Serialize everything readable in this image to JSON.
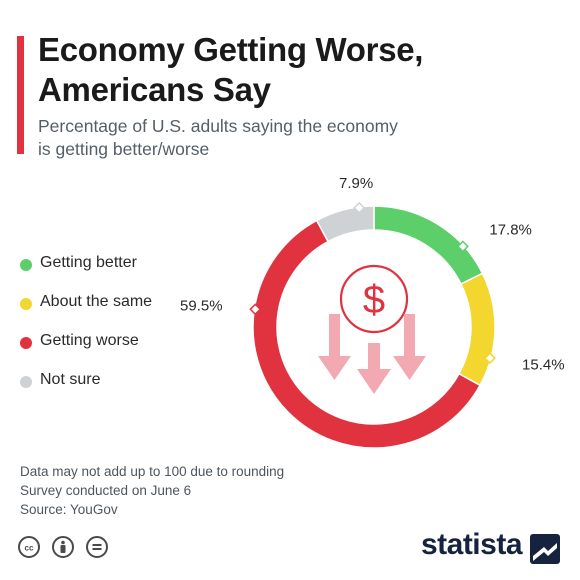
{
  "header": {
    "title": "Economy Getting Worse, Americans Say",
    "subtitle": "Percentage of U.S. adults saying the economy is getting better/worse"
  },
  "legend": [
    {
      "label": "Getting better",
      "color": "#5ccf6b"
    },
    {
      "label": "About the same",
      "color": "#f3d62e"
    },
    {
      "label": "Getting worse",
      "color": "#e0323f"
    },
    {
      "label": "Not sure",
      "color": "#cfd2d4"
    }
  ],
  "chart_data": {
    "type": "pie",
    "variant": "donut",
    "categories": [
      "Getting better",
      "About the same",
      "Getting worse",
      "Not sure"
    ],
    "values": [
      17.8,
      15.4,
      59.5,
      7.9
    ],
    "labels": [
      "17.8%",
      "15.4%",
      "59.5%",
      "7.9%"
    ],
    "colors": [
      "#5ccf6b",
      "#f3d62e",
      "#e0323f",
      "#cfd2d4"
    ],
    "title": "Economy Getting Worse, Americans Say",
    "subtitle": "Percentage of U.S. adults saying the economy is getting better/worse",
    "center_icon": "dollar-down-arrows-icon",
    "legend_position": "left"
  },
  "footnotes": {
    "line1": "Data may not add up to 100 due to rounding",
    "line2": "Survey conducted on June 6",
    "line3": "Source: YouGov"
  },
  "license_icons": [
    "cc-icon",
    "attribution-icon",
    "no-derivatives-icon"
  ],
  "brand": {
    "name": "statista",
    "color": "#16233f"
  }
}
